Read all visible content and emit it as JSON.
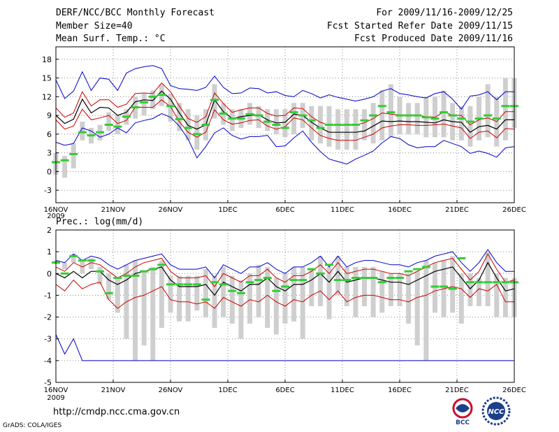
{
  "header": {
    "title": "DERF/NCC/BCC Monthly Forecast",
    "member_size": "Member Size=40",
    "period": "For 2009/11/16-2009/12/25",
    "start_date": "Fcst Started Refer Date 2009/11/15",
    "produced_date": "Fcst Produced Date 2009/11/16"
  },
  "footer": {
    "url": "http://cmdp.ncc.cma.gov.cn",
    "credit": "GrADS: COLA/IGES",
    "logos": [
      {
        "text": "BCC",
        "color": "#c8102e"
      },
      {
        "text": "NCC",
        "color": "#1d3f8a"
      }
    ]
  },
  "colors": {
    "envelope": "#0000cc",
    "spread": "#cc0000",
    "mean": "#000000",
    "box": "#cfcfcf",
    "median": "#33cc33"
  },
  "chart_data": [
    {
      "type": "line",
      "title": "Mean Surf. Temp.: °C",
      "x_tick_labels": [
        "16NOV",
        "21NOV",
        "26NOV",
        "1DEC",
        "6DEC",
        "11DEC",
        "16DEC",
        "21DEC",
        "26DEC"
      ],
      "year_label": "2009",
      "x_start_day": 1,
      "ylim": [
        -5,
        20
      ],
      "y_ticks": [
        -3,
        0,
        3,
        6,
        9,
        12,
        15,
        18
      ],
      "series": [
        {
          "name": "max",
          "values": [
            4.7,
            4.2,
            4.5,
            7.0,
            6.5,
            5.5,
            6.0,
            7.0,
            6.2,
            7.8,
            8.2,
            8.5,
            9.3,
            8.7,
            7.3,
            5.2,
            2.2,
            4.0,
            6.2,
            7.0,
            5.8,
            5.2,
            5.6,
            5.6,
            5.8,
            4.0,
            4.1,
            5.4,
            6.5,
            4.7,
            3.2,
            2.0,
            1.6,
            1.2,
            2.0,
            2.6,
            3.3,
            4.6,
            5.6,
            5.3,
            4.3,
            3.8,
            4.0,
            4.0,
            5.0,
            4.5,
            4.0,
            2.9,
            3.3,
            2.9,
            2.3,
            3.8,
            4.0
          ]
        },
        {
          "name": "spread_low",
          "values": [
            8.3,
            6.8,
            7.3,
            10.0,
            8.3,
            8.6,
            9.0,
            7.7,
            8.2,
            10.3,
            10.3,
            10.3,
            11.5,
            10.4,
            8.0,
            6.3,
            5.5,
            6.3,
            9.9,
            8.3,
            7.6,
            7.8,
            8.2,
            8.3,
            7.3,
            6.8,
            7.2,
            8.6,
            8.3,
            7.0,
            5.8,
            5.3,
            5.0,
            5.0,
            5.0,
            5.5,
            6.0,
            7.0,
            7.3,
            7.5,
            7.5,
            7.4,
            7.4,
            7.5,
            7.6,
            7.3,
            7.0,
            5.3,
            6.3,
            6.5,
            5.4,
            6.9,
            6.8
          ]
        },
        {
          "name": "mean",
          "values": [
            9.0,
            7.7,
            8.4,
            11.6,
            9.4,
            10.3,
            10.2,
            9.0,
            9.5,
            11.2,
            11.5,
            11.4,
            12.9,
            11.6,
            9.4,
            7.4,
            6.8,
            7.5,
            11.5,
            9.6,
            8.5,
            8.8,
            9.0,
            9.1,
            8.3,
            7.8,
            7.9,
            9.2,
            9.0,
            7.9,
            7.0,
            6.3,
            6.3,
            6.3,
            6.3,
            6.5,
            7.3,
            8.1,
            8.0,
            8.1,
            8.0,
            8.0,
            7.9,
            7.8,
            8.3,
            8.0,
            7.9,
            6.3,
            7.2,
            7.4,
            6.8,
            8.3,
            8.3
          ]
        },
        {
          "name": "spread_high",
          "values": [
            10.2,
            8.7,
            9.4,
            12.8,
            10.5,
            11.5,
            11.5,
            10.3,
            10.8,
            12.5,
            12.6,
            12.5,
            14.2,
            12.8,
            10.5,
            8.5,
            7.9,
            8.8,
            12.6,
            10.9,
            9.5,
            9.9,
            10.2,
            10.2,
            9.3,
            8.9,
            9.0,
            10.2,
            10.1,
            8.8,
            7.9,
            7.4,
            7.4,
            7.4,
            7.5,
            7.8,
            8.5,
            9.4,
            9.2,
            9.1,
            9.0,
            9.0,
            8.8,
            8.7,
            9.6,
            9.0,
            9.0,
            7.5,
            8.3,
            8.6,
            8.0,
            9.6,
            9.6
          ]
        },
        {
          "name": "min",
          "values": [
            14.7,
            11.7,
            12.9,
            16.0,
            13.0,
            15.0,
            14.8,
            13.0,
            15.8,
            16.5,
            16.8,
            17.0,
            16.5,
            13.8,
            13.3,
            13.2,
            13.0,
            13.5,
            15.3,
            13.5,
            12.5,
            12.6,
            13.4,
            13.3,
            12.6,
            12.8,
            12.2,
            12.0,
            13.0,
            12.5,
            11.8,
            12.3,
            11.9,
            11.6,
            11.3,
            11.6,
            12.0,
            12.9,
            13.3,
            12.5,
            12.3,
            12.0,
            11.8,
            12.5,
            12.8,
            11.6,
            10.0,
            12.1,
            12.3,
            12.8,
            11.5,
            12.8,
            12.8
          ]
        },
        {
          "name": "box_low",
          "values": [
            -0.5,
            -1.0,
            0.5,
            5.0,
            4.5,
            5.0,
            6.5,
            6.0,
            7.5,
            8.5,
            9.0,
            10.0,
            10.5,
            8.0,
            6.5,
            5.0,
            3.5,
            5.0,
            8.5,
            7.5,
            6.5,
            7.0,
            7.5,
            7.0,
            6.5,
            6.0,
            5.5,
            6.0,
            7.0,
            5.0,
            4.5,
            4.0,
            3.5,
            3.5,
            3.5,
            5.0,
            4.5,
            5.0,
            5.5,
            6.0,
            6.0,
            6.0,
            5.5,
            5.5,
            5.5,
            5.0,
            5.0,
            4.0,
            5.0,
            5.5,
            4.0,
            5.0,
            7.0
          ]
        },
        {
          "name": "box_high",
          "values": [
            3.0,
            2.5,
            4.5,
            8.0,
            7.0,
            7.5,
            9.5,
            9.0,
            10.0,
            12.0,
            12.5,
            13.0,
            14.0,
            12.5,
            11.0,
            10.0,
            9.0,
            10.0,
            14.0,
            11.0,
            10.0,
            10.0,
            11.0,
            10.5,
            10.0,
            10.0,
            10.0,
            11.0,
            11.0,
            10.5,
            10.5,
            10.5,
            10.0,
            10.0,
            10.0,
            10.0,
            11.0,
            13.0,
            14.0,
            12.0,
            11.0,
            11.0,
            12.0,
            12.0,
            13.0,
            11.0,
            10.5,
            10.5,
            12.0,
            14.0,
            12.0,
            15.0,
            15.0
          ]
        },
        {
          "name": "median",
          "values": [
            1.5,
            1.8,
            2.8,
            6.3,
            5.8,
            6.3,
            7.5,
            7.2,
            8.8,
            10.3,
            11.1,
            12.0,
            12.3,
            10.5,
            8.4,
            7.0,
            6.0,
            7.5,
            11.5,
            9.3,
            8.5,
            8.5,
            9.2,
            9.0,
            8.0,
            7.5,
            7.0,
            9.5,
            9.0,
            8.2,
            7.0,
            7.5,
            7.5,
            7.5,
            7.5,
            8.2,
            9.0,
            10.5,
            9.5,
            9.0,
            9.0,
            9.0,
            8.7,
            8.5,
            9.5,
            9.0,
            8.5,
            8.0,
            8.5,
            9.0,
            8.5,
            10.5,
            10.5
          ]
        }
      ]
    },
    {
      "type": "line",
      "title": "Prec.: log(mm/d)",
      "x_tick_labels": [
        "16NOV",
        "21NOV",
        "26NOV",
        "1DEC",
        "6DEC",
        "11DEC",
        "16DEC",
        "21DEC",
        "26DEC"
      ],
      "year_label": "2009",
      "x_start_day": 1,
      "ylim": [
        -5,
        2
      ],
      "y_ticks": [
        -5,
        -4,
        -3,
        -2,
        -1,
        0,
        1,
        2
      ],
      "series": [
        {
          "name": "max",
          "values": [
            -2.8,
            -3.7,
            -3.0,
            -4.0,
            -4.0,
            -4.0,
            -4.0,
            -4.0,
            -4.0,
            -4.0,
            -4.0,
            -4.0,
            -4.0,
            -4.0,
            -4.0,
            -4.0,
            -4.0,
            -4.0,
            -4.0,
            -4.0,
            -4.0,
            -4.0,
            -4.0,
            -4.0,
            -4.0,
            -4.0,
            -4.0,
            -4.0,
            -4.0,
            -4.0,
            -4.0,
            -4.0,
            -4.0,
            -4.0,
            -4.0,
            -4.0,
            -4.0,
            -4.0,
            -4.0,
            -4.0,
            -4.0,
            -4.0,
            -4.0,
            -4.0,
            -4.0,
            -4.0,
            -4.0,
            -4.0,
            -4.0,
            -4.0,
            -4.0,
            -4.0,
            -4.0
          ]
        },
        {
          "name": "spread_low",
          "values": [
            -0.5,
            -0.8,
            -0.3,
            -0.7,
            -0.5,
            -0.4,
            -1.2,
            -1.6,
            -1.3,
            -1.1,
            -1.0,
            -0.8,
            -0.6,
            -1.2,
            -1.3,
            -1.3,
            -1.4,
            -1.3,
            -1.6,
            -1.1,
            -1.3,
            -1.5,
            -1.2,
            -1.3,
            -1.0,
            -1.3,
            -1.5,
            -1.2,
            -1.3,
            -1.0,
            -0.8,
            -1.2,
            -0.8,
            -1.3,
            -1.1,
            -1.0,
            -1.0,
            -1.1,
            -1.2,
            -1.2,
            -1.3,
            -1.1,
            -1.0,
            -0.8,
            -0.7,
            -0.6,
            -0.7,
            -1.1,
            -0.7,
            -0.8,
            -0.5,
            -1.3,
            -1.3
          ]
        },
        {
          "name": "mean",
          "values": [
            0.0,
            -0.2,
            0.1,
            -0.2,
            0.1,
            0.1,
            -0.3,
            -0.5,
            -0.3,
            0.0,
            0.1,
            0.2,
            0.3,
            -0.3,
            -0.6,
            -0.6,
            -0.6,
            -0.5,
            -1.0,
            -0.4,
            -0.6,
            -0.8,
            -0.5,
            -0.5,
            -0.2,
            -0.6,
            -0.8,
            -0.5,
            -0.5,
            -0.3,
            0.0,
            -0.4,
            0.1,
            -0.4,
            -0.3,
            -0.2,
            -0.2,
            -0.3,
            -0.4,
            -0.4,
            -0.5,
            -0.3,
            -0.1,
            0.1,
            0.2,
            0.3,
            -0.2,
            -0.7,
            -0.3,
            0.5,
            -0.2,
            -0.8,
            -0.7
          ]
        },
        {
          "name": "spread_high",
          "values": [
            0.3,
            0.1,
            0.5,
            0.3,
            0.5,
            0.4,
            0.1,
            -0.2,
            0.0,
            0.3,
            0.5,
            0.6,
            0.7,
            0.1,
            -0.2,
            -0.2,
            -0.2,
            -0.1,
            -0.6,
            0.0,
            -0.2,
            -0.4,
            -0.1,
            -0.1,
            0.2,
            -0.2,
            -0.4,
            -0.1,
            -0.1,
            0.1,
            0.4,
            0.0,
            0.5,
            0.0,
            0.1,
            0.2,
            0.2,
            0.1,
            0.0,
            0.0,
            -0.1,
            0.1,
            0.3,
            0.5,
            0.6,
            0.7,
            0.2,
            -0.3,
            0.1,
            0.9,
            0.2,
            -0.4,
            -0.3
          ]
        },
        {
          "name": "min",
          "values": [
            0.6,
            0.5,
            0.9,
            0.6,
            0.8,
            0.7,
            0.4,
            0.2,
            0.4,
            0.6,
            0.7,
            0.8,
            0.9,
            0.4,
            0.2,
            0.2,
            0.2,
            0.3,
            -0.2,
            0.4,
            0.2,
            0.0,
            0.3,
            0.3,
            0.5,
            0.2,
            0.0,
            0.3,
            0.3,
            0.5,
            0.8,
            0.3,
            0.8,
            0.3,
            0.5,
            0.6,
            0.6,
            0.5,
            0.4,
            0.4,
            0.3,
            0.5,
            0.6,
            0.8,
            0.9,
            1.0,
            0.5,
            0.1,
            0.5,
            1.1,
            0.5,
            0.1,
            0.1
          ]
        },
        {
          "name": "box_low",
          "values": [
            0.5,
            0.2,
            0.5,
            0.0,
            0.2,
            -0.5,
            -1.2,
            -1.8,
            -3.0,
            -4.0,
            -3.3,
            -4.0,
            -2.5,
            -1.8,
            -2.2,
            -2.2,
            -1.7,
            -2.0,
            -2.5,
            -2.0,
            -2.3,
            -3.0,
            -2.3,
            -2.0,
            -2.5,
            -2.8,
            -2.3,
            -2.2,
            -3.0,
            -1.5,
            -1.5,
            -2.1,
            -1.0,
            -1.5,
            -2.0,
            -1.5,
            -2.0,
            -1.8,
            -1.5,
            -1.5,
            -2.3,
            -3.3,
            -4.0,
            -1.8,
            -2.0,
            -1.8,
            -2.3,
            -1.5,
            -1.5,
            -1.5,
            -2.0,
            -2.0,
            -2.0
          ]
        },
        {
          "name": "box_high",
          "values": [
            0.6,
            0.5,
            0.9,
            0.6,
            0.7,
            0.3,
            0.0,
            -0.2,
            0.4,
            0.6,
            0.1,
            0.3,
            0.6,
            -0.1,
            -0.1,
            -0.1,
            -0.1,
            0.2,
            -0.1,
            0.3,
            -0.1,
            -0.3,
            0.0,
            0.4,
            0.3,
            -0.2,
            0.0,
            0.3,
            0.3,
            0.2,
            0.8,
            0.3,
            0.8,
            0.3,
            0.3,
            0.3,
            0.3,
            0.1,
            0.0,
            0.0,
            0.0,
            0.1,
            0.6,
            0.5,
            0.6,
            0.8,
            0.0,
            0.0,
            -0.2,
            1.0,
            0.0,
            -0.2,
            -0.2
          ]
        },
        {
          "name": "median",
          "values": [
            0.5,
            0.0,
            0.8,
            0.6,
            0.6,
            0.1,
            -0.9,
            -0.2,
            -0.1,
            -0.1,
            0.1,
            0.2,
            0.4,
            -0.5,
            -0.5,
            -0.5,
            -0.5,
            -1.2,
            -0.4,
            -0.5,
            -0.8,
            -0.9,
            -0.4,
            -0.3,
            -0.2,
            -0.8,
            -0.6,
            -0.3,
            -0.3,
            0.2,
            0.0,
            0.4,
            -0.3,
            -0.3,
            -0.2,
            -0.2,
            -0.2,
            -0.4,
            -0.2,
            -0.2,
            0.1,
            0.2,
            0.3,
            -0.6,
            -0.6,
            -0.7,
            0.7,
            -0.4,
            -0.4,
            -0.4,
            -0.4,
            -0.4,
            -0.4
          ]
        }
      ]
    }
  ]
}
